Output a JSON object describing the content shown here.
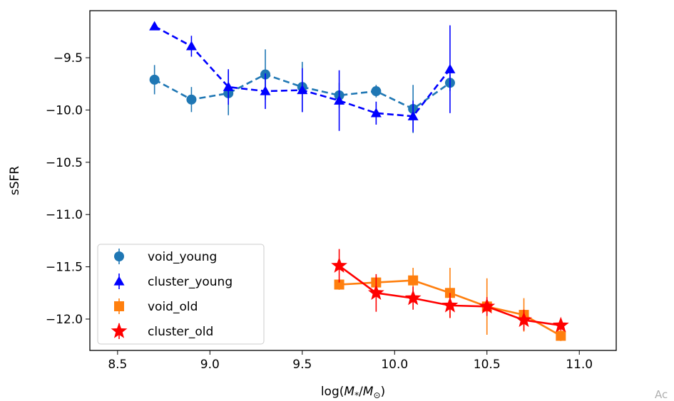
{
  "chart_data": {
    "type": "scatter",
    "xlabel_prefix": "log(",
    "xlabel_math": "M",
    "xlabel_sub1": "*",
    "xlabel_mid": "/",
    "xlabel_math2": "M",
    "xlabel_sub2": "⊙",
    "xlabel_suffix": ")",
    "ylabel": "sSFR",
    "xlim": [
      8.35,
      11.2
    ],
    "ylim": [
      -12.3,
      -9.05
    ],
    "xticks": [
      8.5,
      9.0,
      9.5,
      10.0,
      10.5,
      11.0
    ],
    "xtick_labels": [
      "8.5",
      "9.0",
      "9.5",
      "10.0",
      "10.5",
      "11.0"
    ],
    "yticks": [
      -9.5,
      -10.0,
      -10.5,
      -11.0,
      -11.5,
      -12.0
    ],
    "ytick_labels": [
      "−9.5",
      "−10.0",
      "−10.5",
      "−11.0",
      "−11.5",
      "−12.0"
    ],
    "grid": false,
    "legend_position": "lower-left",
    "series": [
      {
        "name": "void_young",
        "color": "#1f77b4",
        "marker": "circle",
        "linestyle": "dashed",
        "x": [
          8.7,
          8.9,
          9.1,
          9.3,
          9.5,
          9.7,
          9.9,
          10.1,
          10.3
        ],
        "y": [
          -9.71,
          -9.9,
          -9.84,
          -9.66,
          -9.78,
          -9.86,
          -9.82,
          -9.99,
          -9.74
        ],
        "yerr": [
          0.14,
          0.12,
          0.21,
          0.24,
          0.24,
          0.12,
          0.06,
          0.23,
          0.08
        ]
      },
      {
        "name": "cluster_young",
        "color": "#0000ff",
        "marker": "triangle",
        "linestyle": "dashed",
        "x": [
          8.7,
          8.9,
          9.1,
          9.3,
          9.5,
          9.7,
          9.9,
          10.1,
          10.3
        ],
        "y": [
          -9.2,
          -9.39,
          -9.78,
          -9.82,
          -9.81,
          -9.91,
          -10.03,
          -10.06,
          -9.61
        ],
        "yerr": [
          0.03,
          0.1,
          0.17,
          0.17,
          0.21,
          0.29,
          0.11,
          0.15,
          0.42
        ]
      },
      {
        "name": "void_old",
        "color": "#ff7f0e",
        "marker": "square",
        "linestyle": "solid",
        "x": [
          9.7,
          9.9,
          10.1,
          10.3,
          10.5,
          10.7,
          10.9
        ],
        "y": [
          -11.67,
          -11.65,
          -11.63,
          -11.75,
          -11.88,
          -11.96,
          -12.16
        ],
        "yerr": [
          0.05,
          0.06,
          0.12,
          0.24,
          0.27,
          0.16,
          0.05
        ]
      },
      {
        "name": "cluster_old",
        "color": "#ff0000",
        "marker": "star",
        "linestyle": "solid",
        "x": [
          9.7,
          9.9,
          10.1,
          10.3,
          10.5,
          10.7,
          10.9
        ],
        "y": [
          -11.49,
          -11.75,
          -11.8,
          -11.87,
          -11.88,
          -12.01,
          -12.06
        ],
        "yerr": [
          0.16,
          0.18,
          0.11,
          0.12,
          0.09,
          0.1,
          0.05
        ]
      }
    ]
  },
  "watermark": "Ac"
}
